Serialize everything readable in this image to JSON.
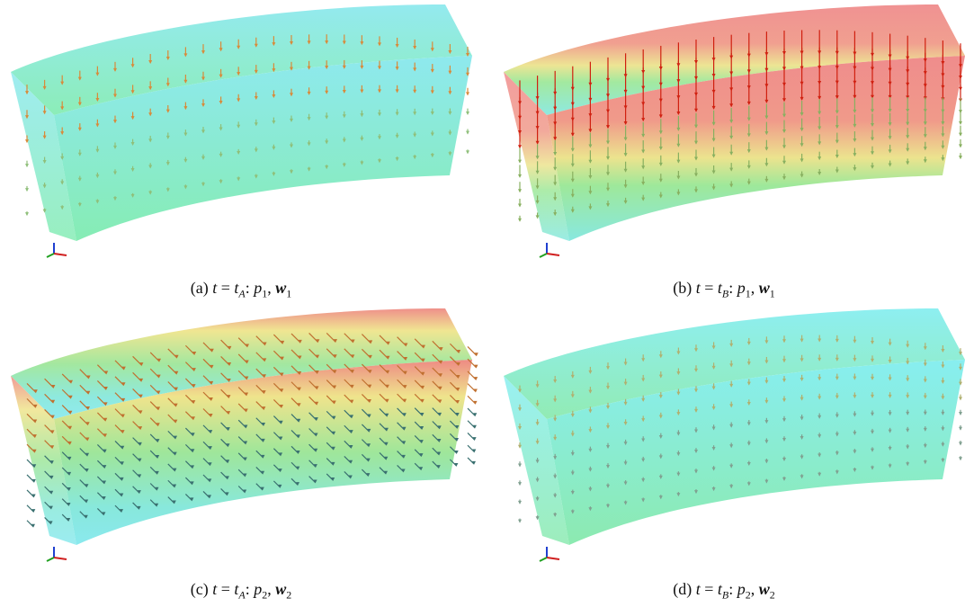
{
  "figure": {
    "panels": [
      {
        "caption": [
          "(a)",
          "t",
          "=",
          "t",
          "A",
          ":",
          "p",
          "1",
          ",",
          "w",
          "1"
        ]
      },
      {
        "caption": [
          "(b)",
          "t",
          "=",
          "t",
          "B",
          ":",
          "p",
          "1",
          ",",
          "w",
          "1"
        ]
      },
      {
        "caption": [
          "(c)",
          "t",
          "=",
          "t",
          "A",
          ":",
          "p",
          "2",
          ",",
          "w",
          "2"
        ]
      },
      {
        "caption": [
          "(d)",
          "t",
          "=",
          "t",
          "B",
          ":",
          "p",
          "2",
          ",",
          "w",
          "2"
        ]
      }
    ]
  }
}
